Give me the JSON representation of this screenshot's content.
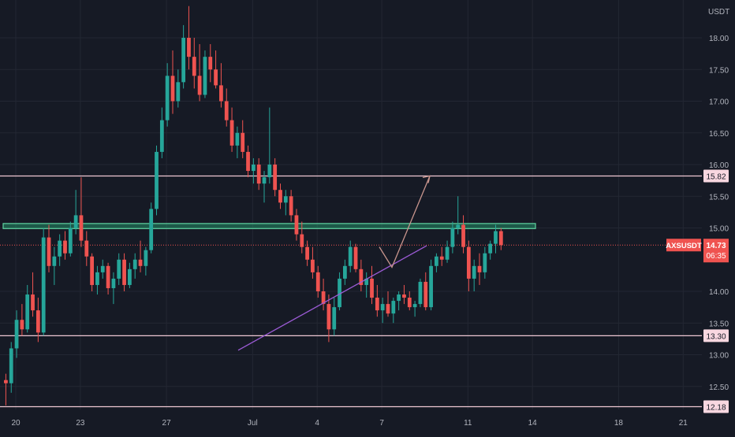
{
  "chart_data": {
    "type": "candlestick",
    "symbol": "AXSUSDT",
    "currency_label": "USDT",
    "last_price": "14.73",
    "countdown": "06:35",
    "ylim": [
      12.15,
      18.55
    ],
    "y_ticks": [
      "18.00",
      "17.50",
      "17.00",
      "16.50",
      "16.00",
      "15.50",
      "15.00",
      "14.00",
      "13.50",
      "13.00",
      "12.50"
    ],
    "x_ticks": [
      "20",
      "23",
      "27",
      "Jul",
      "4",
      "7",
      "11",
      "14",
      "18",
      "21"
    ],
    "horizontal_levels": [
      {
        "value": 15.82,
        "label": "15.82"
      },
      {
        "value": 13.3,
        "label": "13.30"
      },
      {
        "value": 12.18,
        "label": "12.18"
      }
    ],
    "resistance_zone": {
      "low": 14.99,
      "high": 15.07
    },
    "trendline": [
      {
        "x": "Jun 30",
        "y": 13.07
      },
      {
        "x": "Jul 8",
        "y": 14.72
      }
    ],
    "projection": [
      {
        "x": "Jul 7",
        "y": 14.7
      },
      {
        "x": "Jul 8",
        "y": 14.38
      },
      {
        "x": "Jul 10",
        "y": 15.82
      }
    ],
    "candles": [
      [
        12.6,
        12.7,
        12.2,
        12.55
      ],
      [
        12.55,
        13.2,
        12.4,
        13.1
      ],
      [
        13.1,
        13.7,
        12.95,
        13.55
      ],
      [
        13.55,
        13.8,
        13.3,
        13.4
      ],
      [
        13.4,
        14.1,
        13.35,
        13.95
      ],
      [
        13.95,
        14.3,
        13.6,
        13.7
      ],
      [
        13.7,
        13.9,
        13.2,
        13.35
      ],
      [
        13.35,
        15.0,
        13.3,
        14.85
      ],
      [
        14.85,
        15.05,
        14.3,
        14.4
      ],
      [
        14.4,
        14.7,
        14.1,
        14.55
      ],
      [
        14.55,
        14.9,
        14.4,
        14.8
      ],
      [
        14.8,
        14.95,
        14.5,
        14.6
      ],
      [
        14.6,
        15.1,
        14.55,
        15.0
      ],
      [
        15.0,
        15.6,
        14.9,
        15.2
      ],
      [
        15.2,
        15.8,
        14.7,
        14.8
      ],
      [
        14.8,
        14.95,
        14.4,
        14.55
      ],
      [
        14.55,
        14.6,
        14.0,
        14.1
      ],
      [
        14.1,
        14.4,
        13.95,
        14.3
      ],
      [
        14.3,
        14.5,
        14.2,
        14.4
      ],
      [
        14.4,
        14.45,
        13.95,
        14.05
      ],
      [
        14.05,
        14.3,
        13.8,
        14.2
      ],
      [
        14.2,
        14.6,
        14.1,
        14.5
      ],
      [
        14.5,
        14.6,
        14.0,
        14.1
      ],
      [
        14.1,
        14.45,
        14.05,
        14.35
      ],
      [
        14.35,
        14.6,
        14.2,
        14.5
      ],
      [
        14.5,
        14.8,
        14.3,
        14.4
      ],
      [
        14.4,
        14.7,
        14.25,
        14.65
      ],
      [
        14.65,
        15.4,
        14.6,
        15.3
      ],
      [
        15.3,
        16.3,
        15.2,
        16.2
      ],
      [
        16.2,
        16.9,
        16.1,
        16.7
      ],
      [
        16.7,
        17.6,
        16.6,
        17.4
      ],
      [
        17.4,
        17.8,
        16.8,
        17.0
      ],
      [
        17.0,
        17.5,
        16.9,
        17.3
      ],
      [
        17.3,
        18.2,
        17.2,
        18.0
      ],
      [
        18.0,
        18.5,
        17.5,
        17.7
      ],
      [
        17.7,
        18.0,
        17.2,
        17.4
      ],
      [
        17.4,
        17.9,
        17.0,
        17.1
      ],
      [
        17.1,
        17.8,
        17.05,
        17.7
      ],
      [
        17.7,
        17.9,
        17.3,
        17.5
      ],
      [
        17.5,
        17.8,
        17.2,
        17.25
      ],
      [
        17.25,
        17.6,
        16.9,
        17.0
      ],
      [
        17.0,
        17.2,
        16.6,
        16.7
      ],
      [
        16.7,
        16.9,
        16.2,
        16.3
      ],
      [
        16.3,
        16.6,
        16.1,
        16.5
      ],
      [
        16.5,
        16.7,
        16.1,
        16.2
      ],
      [
        16.2,
        16.3,
        15.8,
        15.9
      ],
      [
        15.9,
        16.1,
        15.7,
        16.0
      ],
      [
        16.0,
        16.1,
        15.6,
        15.7
      ],
      [
        15.7,
        15.9,
        15.4,
        15.8
      ],
      [
        15.8,
        16.9,
        15.7,
        16.0
      ],
      [
        16.0,
        16.1,
        15.5,
        15.6
      ],
      [
        15.6,
        15.7,
        15.3,
        15.4
      ],
      [
        15.4,
        15.6,
        15.2,
        15.5
      ],
      [
        15.5,
        15.6,
        15.1,
        15.2
      ],
      [
        15.2,
        15.3,
        14.8,
        14.9
      ],
      [
        14.9,
        15.1,
        14.6,
        14.7
      ],
      [
        14.7,
        14.8,
        14.4,
        14.5
      ],
      [
        14.5,
        14.7,
        14.2,
        14.3
      ],
      [
        14.3,
        14.4,
        13.9,
        14.0
      ],
      [
        14.0,
        14.2,
        13.7,
        13.8
      ],
      [
        13.8,
        13.95,
        13.2,
        13.4
      ],
      [
        13.4,
        13.9,
        13.3,
        13.75
      ],
      [
        13.75,
        14.3,
        13.7,
        14.2
      ],
      [
        14.2,
        14.5,
        14.1,
        14.4
      ],
      [
        14.4,
        14.8,
        14.3,
        14.7
      ],
      [
        14.7,
        14.75,
        14.3,
        14.35
      ],
      [
        14.35,
        14.5,
        14.0,
        14.1
      ],
      [
        14.1,
        14.3,
        13.9,
        14.2
      ],
      [
        14.2,
        14.4,
        13.8,
        13.9
      ],
      [
        13.9,
        14.1,
        13.6,
        13.7
      ],
      [
        13.7,
        13.9,
        13.5,
        13.8
      ],
      [
        13.8,
        14.0,
        13.6,
        13.65
      ],
      [
        13.65,
        13.9,
        13.5,
        13.85
      ],
      [
        13.85,
        14.0,
        13.7,
        13.95
      ],
      [
        13.95,
        14.1,
        13.8,
        13.9
      ],
      [
        13.9,
        14.0,
        13.7,
        13.75
      ],
      [
        13.75,
        13.85,
        13.6,
        13.8
      ],
      [
        13.8,
        14.2,
        13.75,
        14.15
      ],
      [
        14.15,
        14.3,
        13.7,
        13.75
      ],
      [
        13.75,
        14.5,
        13.7,
        14.4
      ],
      [
        14.4,
        14.6,
        14.3,
        14.55
      ],
      [
        14.55,
        14.7,
        14.4,
        14.5
      ],
      [
        14.5,
        14.8,
        14.45,
        14.7
      ],
      [
        14.7,
        15.1,
        14.6,
        15.0
      ],
      [
        15.0,
        15.5,
        14.9,
        15.05
      ],
      [
        15.05,
        15.2,
        14.6,
        14.7
      ],
      [
        14.7,
        14.8,
        14.0,
        14.2
      ],
      [
        14.2,
        14.5,
        14.0,
        14.4
      ],
      [
        14.4,
        14.6,
        14.1,
        14.3
      ],
      [
        14.3,
        14.7,
        14.2,
        14.6
      ],
      [
        14.6,
        14.8,
        14.5,
        14.75
      ],
      [
        14.75,
        15.05,
        14.6,
        14.95
      ],
      [
        14.95,
        15.0,
        14.65,
        14.73
      ]
    ]
  }
}
